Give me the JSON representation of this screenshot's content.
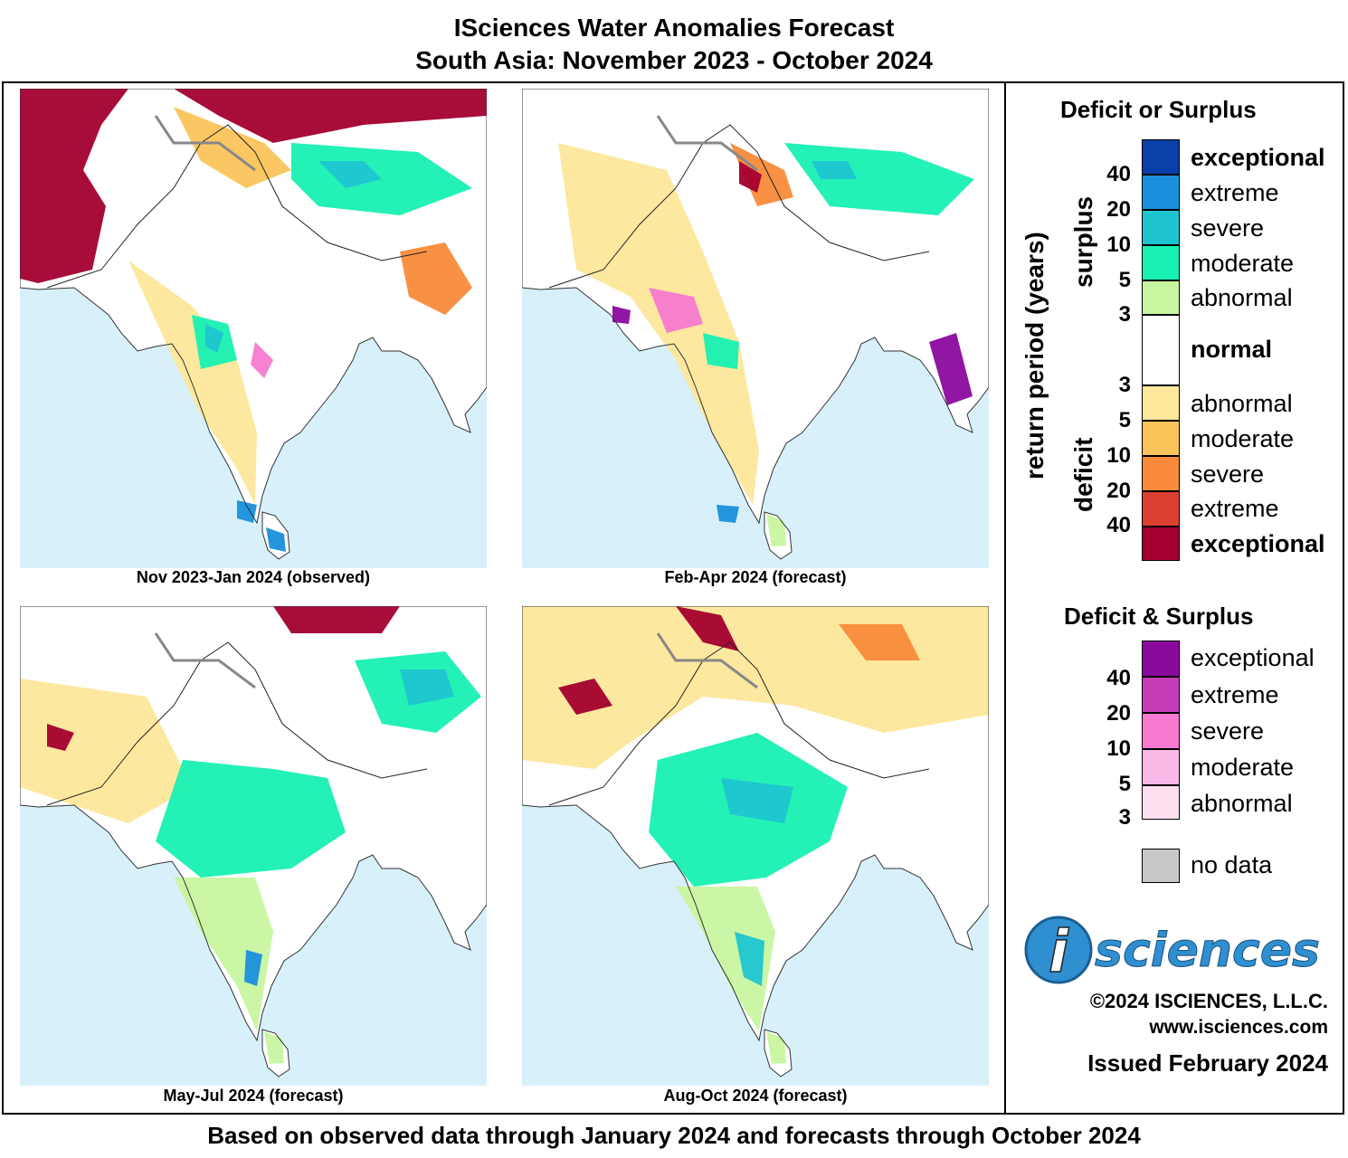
{
  "title": {
    "line1": "ISciences Water Anomalies Forecast",
    "line2": "South Asia: November 2023 - October 2024"
  },
  "maps": [
    {
      "caption": "Nov 2023-Jan 2024 (observed)"
    },
    {
      "caption": "Feb-Apr 2024 (forecast)"
    },
    {
      "caption": "May-Jul 2024 (forecast)"
    },
    {
      "caption": "Aug-Oct 2024 (forecast)"
    }
  ],
  "legend": {
    "deficit_or_surplus": {
      "title": "Deficit or Surplus",
      "axis_label": "return period (years)",
      "surplus_label": "surplus",
      "deficit_label": "deficit",
      "surplus_numbers": [
        "40",
        "20",
        "10",
        "5",
        "3"
      ],
      "deficit_numbers": [
        "3",
        "5",
        "10",
        "20",
        "40"
      ],
      "classes": [
        {
          "label": "exceptional",
          "color": "#0a3fa8"
        },
        {
          "label": "extreme",
          "color": "#1a8fdc"
        },
        {
          "label": "severe",
          "color": "#1ec5d0"
        },
        {
          "label": "moderate",
          "color": "#18f0b2"
        },
        {
          "label": "abnormal",
          "color": "#c8f5a0"
        },
        {
          "label": "normal",
          "color": "#ffffff"
        },
        {
          "label": "abnormal",
          "color": "#fde79a"
        },
        {
          "label": "moderate",
          "color": "#fbc45a"
        },
        {
          "label": "severe",
          "color": "#f98b3a"
        },
        {
          "label": "extreme",
          "color": "#dc4030"
        },
        {
          "label": "exceptional",
          "color": "#a3002f"
        }
      ]
    },
    "deficit_and_surplus": {
      "title": "Deficit & Surplus",
      "numbers": [
        "40",
        "20",
        "10",
        "5",
        "3"
      ],
      "classes": [
        {
          "label": "exceptional",
          "color": "#8b0a9e"
        },
        {
          "label": "extreme",
          "color": "#c63cb8"
        },
        {
          "label": "severe",
          "color": "#f77ad0"
        },
        {
          "label": "moderate",
          "color": "#fab8e6"
        },
        {
          "label": "abnormal",
          "color": "#fde0f0"
        }
      ]
    },
    "no_data": {
      "label": "no data",
      "color": "#c8c8c8"
    }
  },
  "logo": {
    "letter": "i",
    "text": "sciences"
  },
  "copyright": "©2024 ISCIENCES, L.L.C.",
  "website": "www.isciences.com",
  "issued": "Issued February 2024",
  "footer": "Based on observed data through January 2024 and forecasts through October 2024",
  "colors": {
    "ocean": "#d8f0fa",
    "border": "#000000"
  }
}
